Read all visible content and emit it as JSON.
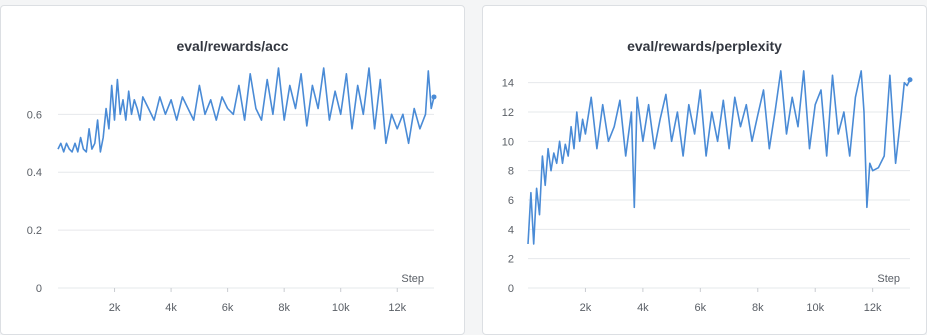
{
  "chart_data": [
    {
      "type": "line",
      "title": "eval/rewards/acc",
      "xlabel": "Step",
      "ylabel": "",
      "xlim": [
        0,
        13300
      ],
      "ylim": [
        0,
        0.76
      ],
      "xticks": [
        "2k",
        "4k",
        "6k",
        "8k",
        "10k",
        "12k"
      ],
      "xtick_values": [
        2000,
        4000,
        6000,
        8000,
        10000,
        12000
      ],
      "yticks": [
        "0",
        "0.2",
        "0.4",
        "0.6"
      ],
      "ytick_values": [
        0,
        0.2,
        0.4,
        0.6
      ],
      "grid": true,
      "series": [
        {
          "color": "#4a8bd6",
          "x": [
            0,
            100,
            200,
            300,
            400,
            500,
            600,
            700,
            800,
            900,
            1000,
            1100,
            1200,
            1300,
            1400,
            1500,
            1600,
            1700,
            1800,
            1900,
            2000,
            2100,
            2200,
            2300,
            2400,
            2500,
            2600,
            2700,
            2800,
            2900,
            3000,
            3200,
            3400,
            3600,
            3800,
            4000,
            4200,
            4400,
            4600,
            4800,
            5000,
            5200,
            5400,
            5600,
            5800,
            6000,
            6200,
            6400,
            6600,
            6800,
            7000,
            7200,
            7400,
            7600,
            7800,
            8000,
            8200,
            8400,
            8600,
            8800,
            9000,
            9200,
            9400,
            9600,
            9800,
            10000,
            10200,
            10400,
            10600,
            10800,
            11000,
            11200,
            11400,
            11600,
            11800,
            12000,
            12200,
            12400,
            12600,
            12800,
            13000,
            13100,
            13200,
            13300
          ],
          "y": [
            0.48,
            0.5,
            0.47,
            0.5,
            0.48,
            0.47,
            0.5,
            0.47,
            0.52,
            0.48,
            0.47,
            0.55,
            0.48,
            0.5,
            0.58,
            0.47,
            0.52,
            0.62,
            0.55,
            0.7,
            0.58,
            0.72,
            0.6,
            0.65,
            0.58,
            0.68,
            0.6,
            0.65,
            0.62,
            0.58,
            0.66,
            0.62,
            0.58,
            0.66,
            0.6,
            0.65,
            0.58,
            0.66,
            0.62,
            0.58,
            0.7,
            0.6,
            0.65,
            0.58,
            0.66,
            0.62,
            0.6,
            0.7,
            0.58,
            0.74,
            0.62,
            0.58,
            0.72,
            0.6,
            0.76,
            0.58,
            0.7,
            0.62,
            0.74,
            0.56,
            0.7,
            0.62,
            0.76,
            0.58,
            0.68,
            0.6,
            0.74,
            0.55,
            0.7,
            0.6,
            0.76,
            0.55,
            0.72,
            0.5,
            0.6,
            0.55,
            0.6,
            0.5,
            0.62,
            0.55,
            0.6,
            0.75,
            0.62,
            0.66
          ]
        }
      ]
    },
    {
      "type": "line",
      "title": "eval/rewards/perplexity",
      "xlabel": "Step",
      "ylabel": "",
      "xlim": [
        0,
        13300
      ],
      "ylim": [
        0,
        15
      ],
      "xticks": [
        "2k",
        "4k",
        "6k",
        "8k",
        "10k",
        "12k"
      ],
      "xtick_values": [
        2000,
        4000,
        6000,
        8000,
        10000,
        12000
      ],
      "yticks": [
        "0",
        "2",
        "4",
        "6",
        "8",
        "10",
        "12",
        "14"
      ],
      "ytick_values": [
        0,
        2,
        4,
        6,
        8,
        10,
        12,
        14
      ],
      "grid": true,
      "series": [
        {
          "color": "#4a8bd6",
          "x": [
            0,
            100,
            200,
            300,
            400,
            500,
            600,
            700,
            800,
            900,
            1000,
            1100,
            1200,
            1300,
            1400,
            1500,
            1600,
            1700,
            1800,
            1900,
            2000,
            2200,
            2400,
            2600,
            2800,
            3000,
            3200,
            3400,
            3600,
            3700,
            3800,
            4000,
            4200,
            4400,
            4600,
            4800,
            5000,
            5200,
            5400,
            5600,
            5800,
            6000,
            6200,
            6400,
            6600,
            6800,
            7000,
            7200,
            7400,
            7600,
            7800,
            8000,
            8200,
            8400,
            8600,
            8800,
            9000,
            9200,
            9400,
            9600,
            9800,
            10000,
            10200,
            10400,
            10600,
            10800,
            11000,
            11200,
            11400,
            11600,
            11700,
            11800,
            11900,
            12000,
            12200,
            12400,
            12600,
            12800,
            13000,
            13100,
            13200,
            13300
          ],
          "y": [
            3.0,
            6.5,
            3.0,
            6.8,
            5.0,
            9.0,
            7.0,
            9.5,
            8.0,
            9.2,
            8.5,
            10.0,
            8.5,
            9.8,
            9.0,
            11.0,
            9.5,
            12.0,
            10.0,
            11.5,
            10.5,
            13.0,
            9.5,
            12.5,
            10.0,
            11.0,
            12.8,
            9.0,
            12.0,
            5.5,
            13.0,
            10.0,
            12.5,
            9.5,
            11.5,
            13.2,
            10.0,
            12.0,
            9.0,
            12.5,
            10.5,
            13.5,
            9.0,
            12.0,
            10.0,
            12.8,
            9.5,
            13.0,
            11.0,
            12.5,
            10.0,
            11.8,
            13.5,
            9.5,
            12.0,
            14.8,
            10.5,
            13.0,
            11.0,
            14.8,
            9.5,
            12.5,
            13.5,
            9.0,
            14.5,
            10.5,
            12.0,
            9.0,
            13.0,
            14.8,
            12.0,
            5.5,
            8.5,
            8.0,
            8.2,
            9.0,
            14.5,
            8.5,
            12.0,
            14.0,
            13.8,
            14.2
          ]
        }
      ]
    }
  ]
}
